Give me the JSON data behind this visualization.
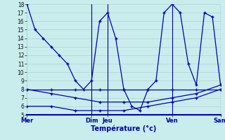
{
  "xlabel": "Température (°c)",
  "bg_color": "#c8edec",
  "grid_color": "#aad4d4",
  "line_color": "#0000bb",
  "ymin": 5,
  "ymax": 18,
  "xlim": [
    0,
    24
  ],
  "day_labels": [
    "Mer",
    "Dim",
    "Jeu",
    "Ven",
    "Sam"
  ],
  "day_x": [
    0,
    8,
    10,
    18,
    24
  ],
  "vlines": [
    8,
    10,
    18,
    24
  ],
  "line1_x": [
    0,
    1,
    2,
    3,
    4,
    5,
    6,
    7,
    8,
    9,
    10,
    11,
    12,
    13,
    14,
    15,
    16,
    17,
    18,
    19,
    20,
    21,
    22,
    23,
    24
  ],
  "line1_y": [
    18,
    15,
    14,
    13,
    12,
    11,
    9,
    8,
    9,
    16,
    17,
    14,
    8,
    6,
    5.5,
    8,
    9,
    17,
    18,
    17,
    11,
    8.5,
    17,
    16.5,
    8.5
  ],
  "line2_x": [
    0,
    3,
    6,
    9,
    12,
    15,
    18,
    21,
    24
  ],
  "line2_y": [
    8,
    8,
    8,
    8,
    8,
    8,
    8,
    8,
    8
  ],
  "line3_x": [
    0,
    3,
    6,
    9,
    12,
    15,
    18,
    21,
    24
  ],
  "line3_y": [
    8,
    7.5,
    7.0,
    6.5,
    6.5,
    6.5,
    7.0,
    7.5,
    8.5
  ],
  "line4_x": [
    0,
    3,
    6,
    9,
    12,
    15,
    18,
    21,
    24
  ],
  "line4_y": [
    6,
    6.0,
    5.5,
    5.5,
    5.5,
    6.0,
    6.5,
    7.0,
    8.0
  ]
}
